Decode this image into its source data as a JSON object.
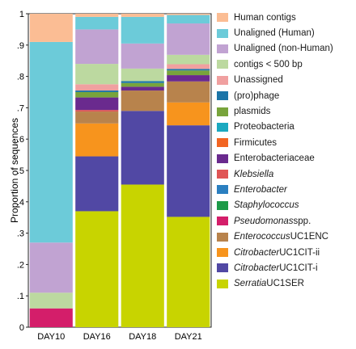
{
  "chart_data": {
    "type": "bar",
    "stacked": true,
    "title": "",
    "xlabel": "",
    "ylabel": "Proportion of sequences",
    "ylim": [
      0,
      1
    ],
    "yticks": [
      {
        "value": 0,
        "label": "0"
      },
      {
        "value": 0.1,
        "label": ".1"
      },
      {
        "value": 0.2,
        "label": ".2"
      },
      {
        "value": 0.3,
        "label": ".3"
      },
      {
        "value": 0.4,
        "label": ".4"
      },
      {
        "value": 0.5,
        "label": ".5"
      },
      {
        "value": 0.6,
        "label": ".6"
      },
      {
        "value": 0.7,
        "label": ".7"
      },
      {
        "value": 0.8,
        "label": ".8"
      },
      {
        "value": 0.9,
        "label": ".9"
      },
      {
        "value": 1,
        "label": "1"
      }
    ],
    "categories": [
      "DAY10",
      "DAY16",
      "DAY18",
      "DAY21"
    ],
    "legend_position": "right",
    "series": [
      {
        "name": "Serratia",
        "suffix": " UC1SER",
        "italic": true,
        "color": "#c8d400",
        "values": [
          0.0,
          0.37,
          0.455,
          0.352
        ]
      },
      {
        "name": "Citrobacter",
        "suffix": " UC1CIT-i",
        "italic": true,
        "color": "#5148a4",
        "values": [
          0.0,
          0.175,
          0.235,
          0.292
        ]
      },
      {
        "name": "Citrobacter",
        "suffix": " UC1CIT-ii",
        "italic": true,
        "color": "#f7941d",
        "values": [
          0.0,
          0.105,
          0.0,
          0.073
        ]
      },
      {
        "name": "Enterococcus",
        "suffix": " UC1ENC",
        "italic": true,
        "color": "#b8834c",
        "values": [
          0.0,
          0.038,
          0.065,
          0.067
        ]
      },
      {
        "name": "Pseudomonas",
        "suffix": " spp.",
        "italic": true,
        "color": "#d41e6a",
        "values": [
          0.06,
          0.0,
          0.0,
          0.0
        ]
      },
      {
        "name": "Staphylococcus",
        "suffix": "",
        "italic": true,
        "color": "#1d9a48",
        "values": [
          0.0,
          0.0,
          0.0,
          0.0
        ]
      },
      {
        "name": "Enterobacter",
        "suffix": "",
        "italic": true,
        "color": "#2b7fc0",
        "values": [
          0.0,
          0.0,
          0.0,
          0.0
        ]
      },
      {
        "name": "Klebsiella",
        "suffix": "",
        "italic": true,
        "color": "#e05555",
        "values": [
          0.0,
          0.005,
          0.0,
          0.0
        ]
      },
      {
        "name": "Enterobacteriaceae",
        "suffix": "",
        "italic": false,
        "color": "#6a2a8e",
        "values": [
          0.0,
          0.04,
          0.012,
          0.02
        ]
      },
      {
        "name": "Firmicutes",
        "suffix": "",
        "italic": false,
        "color": "#f26522",
        "values": [
          0.0,
          0.0,
          0.0,
          0.0
        ]
      },
      {
        "name": "Proteobacteria",
        "suffix": "",
        "italic": false,
        "color": "#1ba9c0",
        "values": [
          0.0,
          0.0,
          0.0,
          0.0
        ]
      },
      {
        "name": "plasmids",
        "suffix": "",
        "italic": false,
        "color": "#78a43c",
        "values": [
          0.0,
          0.017,
          0.012,
          0.015
        ]
      },
      {
        "name": "(pro)phage",
        "suffix": "",
        "italic": false,
        "color": "#1c75a8",
        "values": [
          0.0,
          0.005,
          0.006,
          0.005
        ]
      },
      {
        "name": "Unassigned",
        "suffix": "",
        "italic": false,
        "color": "#f0a0a0",
        "values": [
          0.0,
          0.02,
          0.0,
          0.015
        ]
      },
      {
        "name": "contigs < 500 bp",
        "suffix": "",
        "italic": false,
        "color": "#bcd9a0",
        "values": [
          0.05,
          0.065,
          0.04,
          0.03
        ]
      },
      {
        "name": "Unaligned (non-Human)",
        "suffix": "",
        "italic": false,
        "color": "#c1a3d2",
        "values": [
          0.16,
          0.11,
          0.08,
          0.1
        ]
      },
      {
        "name": "Unaligned (Human)",
        "suffix": "",
        "italic": false,
        "color": "#6ccbd9",
        "values": [
          0.64,
          0.04,
          0.085,
          0.027
        ]
      },
      {
        "name": "Human contigs",
        "suffix": "",
        "italic": false,
        "color": "#fbbd94",
        "values": [
          0.09,
          0.01,
          0.01,
          0.004
        ]
      }
    ]
  }
}
